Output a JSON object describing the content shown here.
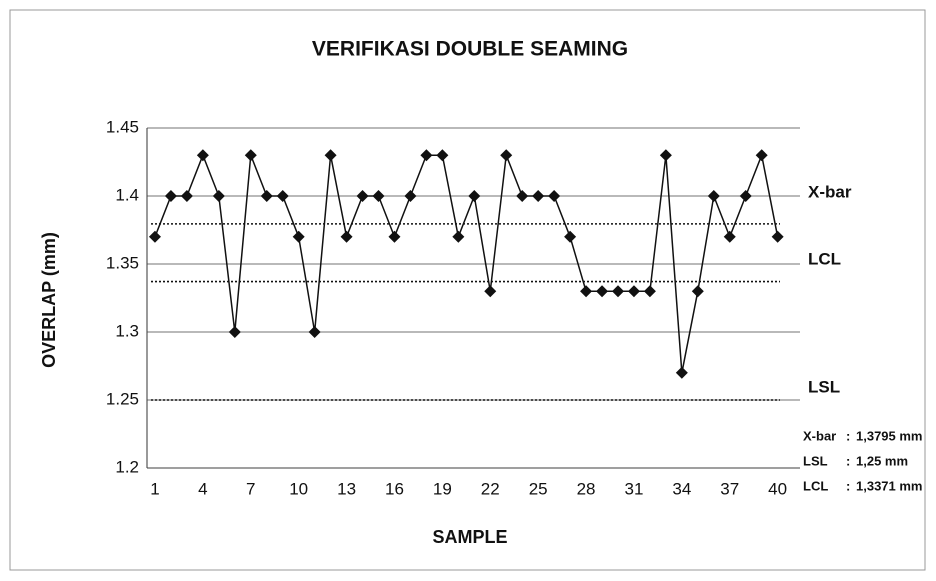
{
  "chart_data": {
    "type": "line",
    "title": "VERIFIKASI DOUBLE SEAMING",
    "x_label": "SAMPLE",
    "y_label": "OVERLAP (mm)",
    "x": [
      1,
      2,
      3,
      4,
      5,
      6,
      7,
      8,
      9,
      10,
      11,
      12,
      13,
      14,
      15,
      16,
      17,
      18,
      19,
      20,
      21,
      22,
      23,
      24,
      25,
      26,
      27,
      28,
      29,
      30,
      31,
      32,
      33,
      34,
      35,
      36,
      37,
      38,
      39,
      40
    ],
    "series": [
      {
        "color": "#111111",
        "values": [
          1.37,
          1.4,
          1.4,
          1.43,
          1.4,
          1.3,
          1.43,
          1.4,
          1.4,
          1.37,
          1.3,
          1.43,
          1.37,
          1.4,
          1.4,
          1.37,
          1.4,
          1.43,
          1.43,
          1.37,
          1.4,
          1.33,
          1.43,
          1.4,
          1.4,
          1.4,
          1.37,
          1.33,
          1.33,
          1.33,
          1.33,
          1.33,
          1.43,
          1.27,
          1.33,
          1.4,
          1.37,
          1.4,
          1.43,
          1.37
        ]
      }
    ],
    "xlim": [
      0.5,
      41.4
    ],
    "xticks": [
      1,
      4,
      7,
      10,
      13,
      16,
      19,
      22,
      25,
      28,
      31,
      34,
      37,
      40
    ],
    "ylim": [
      1.2,
      1.45
    ],
    "yticks": [
      1.2,
      1.25,
      1.3,
      1.35,
      1.4,
      1.45
    ],
    "grid": true,
    "reference_lines": [
      {
        "label": "X-bar",
        "value": 1.3795,
        "value_label": "1,3795 mm"
      },
      {
        "label": "LSL",
        "value": 1.25,
        "value_label": "1,25 mm"
      },
      {
        "label": "LCL",
        "value": 1.3371,
        "value_label": "1,3371 mm"
      }
    ]
  }
}
